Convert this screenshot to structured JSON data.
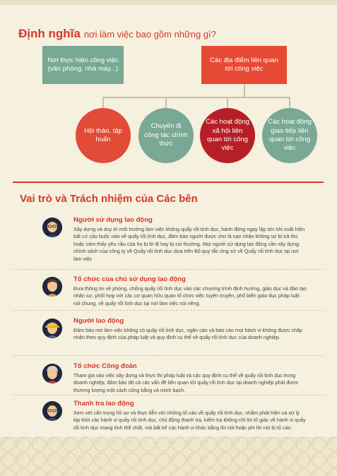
{
  "definition": {
    "title_strong": "Định nghĩa",
    "title_light": "nơi làm việc bao gồm những gì?",
    "box_left": "Nơi thực hiện công việc (văn phòng, nhà máy...)",
    "box_right": "Các địa điểm liên quan tới công việc",
    "circles": [
      "Hội thảo, tập huấn",
      "Chuyến đi công tác chính thức",
      "Các hoạt động xã hội liên quan tới công việc",
      "Các hoạt động giao tiếp liên quan tới công việc"
    ]
  },
  "roles_section": {
    "title": "Vai trò và Trách nhiệm của Các bên",
    "items": [
      {
        "heading": "Người sử dụng lao động",
        "text": "Xây dựng và duy trì môi trường làm việc không quấy rối tình dục, hành động ngay lập tức khi xuất hiện bất cứ cáo buộc nào về quấy rối tình dục, đảm bảo người được cho là nạn nhân không sợ bị trả thù hoặc cảm thấy yêu cầu của họ bị lờ đi hay bị coi thường. Mọi người sử dụng lao động cần xây dựng chính sách của công ty về Quấy rối tình dục dựa trên Bộ quy tắc ứng xử về Quấy rối tình dục tại nơi làm việc"
      },
      {
        "heading": "Tổ chức của chủ sử dụng lao động",
        "text": "Đưa thông tin về phòng, chống quấy rối tình dục vào các chương trình định hướng, giáo dục và đào tạo nhân sự, phối hợp với các cơ quan hữu quan tổ chức việc tuyên truyền, phổ biến giáo dục pháp luật nói chung, về quấy rối tình dục tại nơi làm việc nói riêng."
      },
      {
        "heading": "Người lao động",
        "text": "Đảm bảo nơi làm việc không có quấy rối tình dục, ngăn cản và báo cáo mọi hành vi không được chấp nhận theo quy định của pháp luật và quy định cụ thể về quấy rối tình dục của doanh nghiệp."
      },
      {
        "heading": "Tổ chức Công đoàn",
        "text": "Tham gia vào việc xây dựng và thực thi pháp luật và các quy định cụ thể về quấy rối tình dục trong doanh nghiệp, đảm bảo tất cả các vấn đề liên quan tới quấy rối tình dục tại doanh nghiệp phải được thương lượng một cách công bằng và minh bạch."
      },
      {
        "heading": "Thanh tra lao động",
        "text": "Xem xét cẩn trọng hồ sơ và thực tiễn với những tố cáo về quấy rối tình dục, nhằm phát hiện và xử lý kịp thời các hành vi quấy rối tình dục, chủ động thanh tra, kiểm tra không chỉ lời tố giác về hành vi quấy rối tình dục mang tính thể chất, mà bất kể các hành vi khác bằng lời nói hoặc phi lời nói bị tố cáo."
      }
    ]
  },
  "colors": {
    "accent_red": "#cf3a2a",
    "box_green": "#79a894",
    "box_red": "#e74a34",
    "circle_dark": "#b71f27",
    "background": "#f6f0df"
  }
}
